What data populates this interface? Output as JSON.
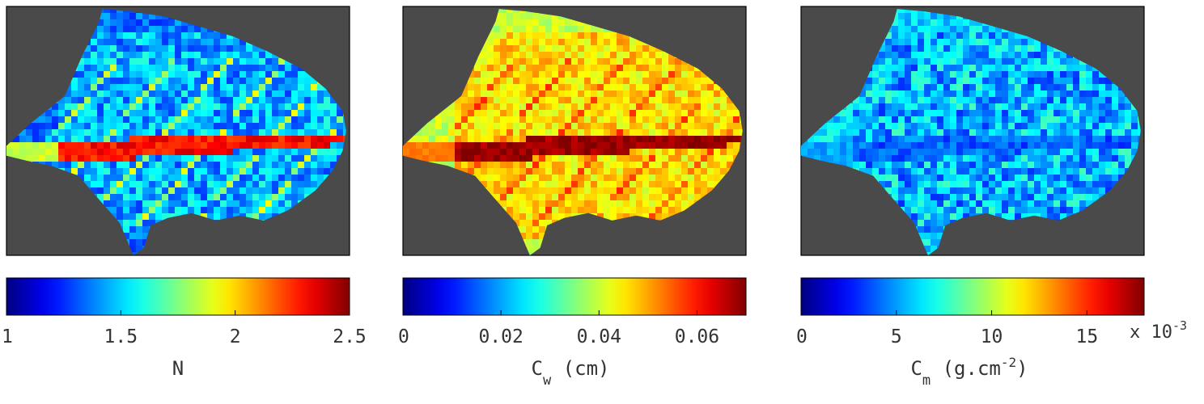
{
  "chart_data": [
    {
      "type": "heatmap",
      "description_of_content": "",
      "colormap": "jet",
      "background_color": "#4a4a4a",
      "colorbar": {
        "position": "bottom",
        "range": [
          1,
          2.5
        ],
        "ticks": [
          1,
          1.5,
          2,
          2.5
        ],
        "tick_labels": [
          "1",
          "1.5",
          "2",
          "2.5"
        ],
        "label": "N",
        "label_sub": "",
        "label_sup": "",
        "label_unit_prefix": "",
        "label_unit_suffix": "",
        "multiplier": ""
      },
      "leaf": {
        "base_value": 1.45,
        "vein_value": 2.3,
        "edge_value": 1.2,
        "noise": 0.18
      }
    },
    {
      "type": "heatmap",
      "colormap": "jet",
      "background_color": "#4a4a4a",
      "colorbar": {
        "position": "bottom",
        "range": [
          0,
          0.07
        ],
        "ticks": [
          0,
          0.02,
          0.04,
          0.06
        ],
        "tick_labels": [
          "0",
          "0.02",
          "0.04",
          "0.06"
        ],
        "label": "C",
        "label_sub": "w",
        "label_unit_prefix": " (cm)",
        "label_sup": "",
        "label_unit_suffix": "",
        "multiplier": ""
      },
      "leaf": {
        "base_value": 0.046,
        "vein_value": 0.068,
        "edge_value": 0.03,
        "noise": 0.006
      }
    },
    {
      "type": "heatmap",
      "colormap": "jet",
      "background_color": "#4a4a4a",
      "colorbar": {
        "position": "bottom",
        "range": [
          0,
          0.018
        ],
        "ticks": [
          0,
          5,
          10,
          15
        ],
        "tick_labels": [
          "0",
          "5",
          "10",
          "15"
        ],
        "label": "C",
        "label_sub": "m",
        "label_unit_prefix": " (g.cm",
        "label_sup": "-2",
        "label_unit_suffix": ")",
        "multiplier": "x 10",
        "multiplier_exp": "-3"
      },
      "leaf": {
        "base_value": 0.0055,
        "vein_value": 0.004,
        "edge_value": 0.007,
        "noise": 0.0025
      }
    }
  ]
}
